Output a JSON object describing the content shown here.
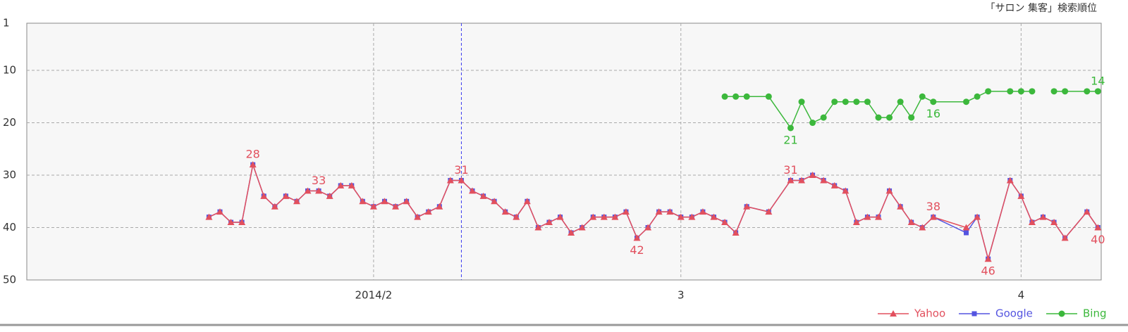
{
  "chart_data": {
    "type": "line",
    "title": "「サロン 集客」検索順位",
    "xlim": [
      0.4,
      98.3
    ],
    "xticks": [
      {
        "value": 32,
        "label": "2014/2"
      },
      {
        "value": 60,
        "label": "3"
      },
      {
        "value": 91,
        "label": "4"
      }
    ],
    "ylim": [
      1,
      50
    ],
    "yticks": [
      1,
      10,
      20,
      30,
      40,
      50
    ],
    "y_inverted": true,
    "grid": true,
    "legend": "bottom-right",
    "highlight_x": 40,
    "highlight_color": "#3a3af0",
    "series": [
      {
        "name": "Yahoo",
        "color": "#e2505e",
        "marker": "triangle",
        "x": [
          17,
          18,
          19,
          20,
          21,
          22,
          23,
          24,
          25,
          26,
          27,
          28,
          29,
          30,
          31,
          32,
          33,
          34,
          35,
          36,
          37,
          38,
          39,
          40,
          41,
          42,
          43,
          44,
          45,
          46,
          47,
          48,
          49,
          50,
          51,
          52,
          53,
          54,
          55,
          56,
          57,
          58,
          59,
          60,
          61,
          62,
          63,
          64,
          65,
          66,
          68,
          70,
          71,
          72,
          73,
          74,
          75,
          76,
          77,
          78,
          79,
          80,
          81,
          82,
          83,
          86,
          87,
          88,
          90,
          91,
          92,
          93,
          94,
          95,
          97,
          98
        ],
        "values": [
          38,
          37,
          39,
          39,
          28,
          34,
          36,
          34,
          35,
          33,
          33,
          34,
          32,
          32,
          35,
          36,
          35,
          36,
          35,
          38,
          37,
          36,
          31,
          31,
          33,
          34,
          35,
          37,
          38,
          35,
          40,
          39,
          38,
          41,
          40,
          38,
          38,
          38,
          37,
          42,
          40,
          37,
          37,
          38,
          38,
          37,
          38,
          39,
          41,
          36,
          37,
          31,
          31,
          30,
          31,
          32,
          33,
          39,
          38,
          38,
          33,
          36,
          39,
          40,
          38,
          40,
          38,
          46,
          31,
          34,
          39,
          38,
          39,
          42,
          37,
          40
        ],
        "value_labels": [
          null,
          null,
          null,
          null,
          "28",
          null,
          null,
          null,
          null,
          null,
          "33",
          null,
          null,
          null,
          null,
          null,
          null,
          null,
          null,
          null,
          null,
          null,
          null,
          "31",
          null,
          null,
          null,
          null,
          null,
          null,
          null,
          null,
          null,
          null,
          null,
          null,
          null,
          null,
          null,
          "42",
          null,
          null,
          null,
          null,
          null,
          null,
          null,
          null,
          null,
          null,
          null,
          "31",
          null,
          null,
          null,
          null,
          null,
          null,
          null,
          null,
          null,
          null,
          null,
          null,
          "38",
          null,
          null,
          "46",
          null,
          null,
          null,
          null,
          null,
          null,
          null,
          "40"
        ]
      },
      {
        "name": "Google",
        "color": "#5454e0",
        "marker": "square",
        "x": [
          17,
          18,
          19,
          20,
          21,
          22,
          23,
          24,
          25,
          26,
          27,
          28,
          29,
          30,
          31,
          32,
          33,
          34,
          35,
          36,
          37,
          38,
          39,
          40,
          41,
          42,
          43,
          44,
          45,
          46,
          47,
          48,
          49,
          50,
          51,
          52,
          53,
          54,
          55,
          56,
          57,
          58,
          59,
          60,
          61,
          62,
          63,
          64,
          65,
          66,
          68,
          70,
          71,
          72,
          73,
          74,
          75,
          76,
          77,
          78,
          79,
          80,
          81,
          82,
          83,
          86,
          87,
          88,
          90,
          91,
          92,
          93,
          94,
          95,
          97,
          98
        ],
        "values": [
          38,
          37,
          39,
          39,
          28,
          34,
          36,
          34,
          35,
          33,
          33,
          34,
          32,
          32,
          35,
          36,
          35,
          36,
          35,
          38,
          37,
          36,
          31,
          31,
          33,
          34,
          35,
          37,
          38,
          35,
          40,
          39,
          38,
          41,
          40,
          38,
          38,
          38,
          37,
          42,
          40,
          37,
          37,
          38,
          38,
          37,
          38,
          39,
          41,
          36,
          37,
          31,
          31,
          30,
          31,
          32,
          33,
          39,
          38,
          38,
          33,
          36,
          39,
          40,
          38,
          41,
          38,
          46,
          31,
          34,
          39,
          38,
          39,
          42,
          37,
          40
        ]
      },
      {
        "name": "Bing",
        "color": "#3cb83c",
        "marker": "circle",
        "x": [
          64,
          65,
          66,
          68,
          70,
          71,
          72,
          73,
          74,
          75,
          76,
          77,
          78,
          79,
          80,
          81,
          82,
          83,
          86,
          87,
          88,
          90,
          91,
          92,
          93,
          94,
          95,
          97,
          98
        ],
        "values": [
          15,
          15,
          15,
          15,
          21,
          16,
          20,
          19,
          16,
          16,
          16,
          16,
          19,
          19,
          16,
          19,
          15,
          16,
          16,
          15,
          14,
          14,
          14,
          14,
          null,
          14,
          14,
          14,
          14
        ],
        "value_labels": [
          null,
          null,
          null,
          null,
          "21",
          null,
          null,
          null,
          null,
          null,
          null,
          null,
          null,
          null,
          null,
          null,
          null,
          "16",
          null,
          null,
          null,
          null,
          null,
          null,
          null,
          null,
          null,
          null,
          "14"
        ]
      }
    ]
  }
}
